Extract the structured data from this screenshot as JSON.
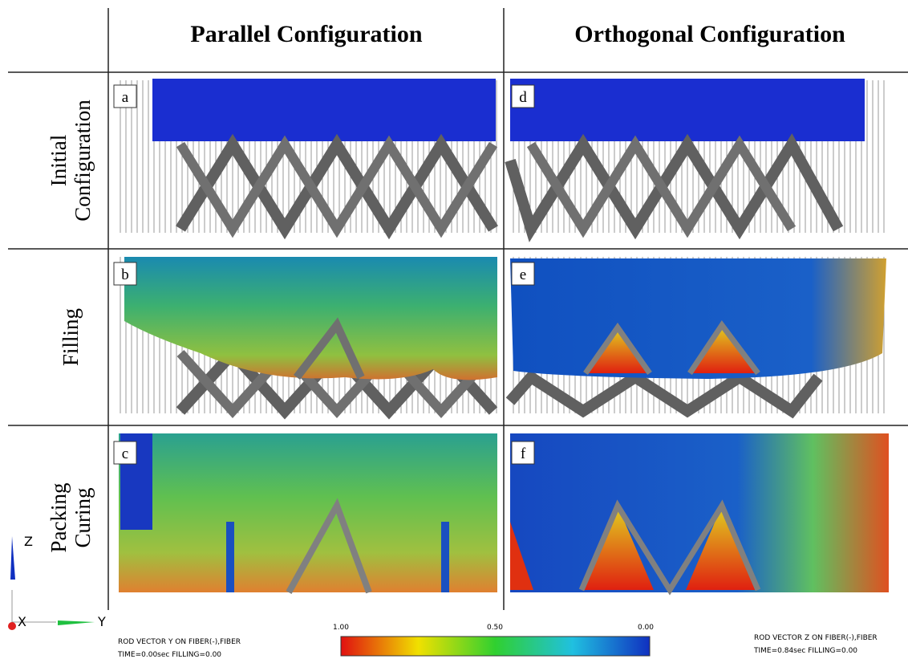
{
  "header": {
    "columns": [
      "Parallel Configuration",
      "Orthogonal Configuration"
    ]
  },
  "rows": [
    {
      "label": [
        "Initial",
        "Configuration"
      ],
      "panels": [
        "a",
        "d"
      ]
    },
    {
      "label": [
        "Filling"
      ],
      "panels": [
        "b",
        "e"
      ]
    },
    {
      "label": [
        "Packing",
        "Curing"
      ],
      "panels": [
        "c",
        "f"
      ]
    }
  ],
  "colorbar": {
    "labels": [
      "1.00",
      "0.50",
      "0.00"
    ]
  },
  "captions": {
    "left": [
      "ROD VECTOR Y ON FIBER(-),FIBER",
      "TIME=0.00sec FILLING=0.00"
    ],
    "right": [
      "ROD VECTOR Z ON FIBER(-),FIBER",
      "TIME=0.84sec FILLING=0.00"
    ]
  },
  "axes": [
    "Z",
    "X",
    "Y"
  ]
}
